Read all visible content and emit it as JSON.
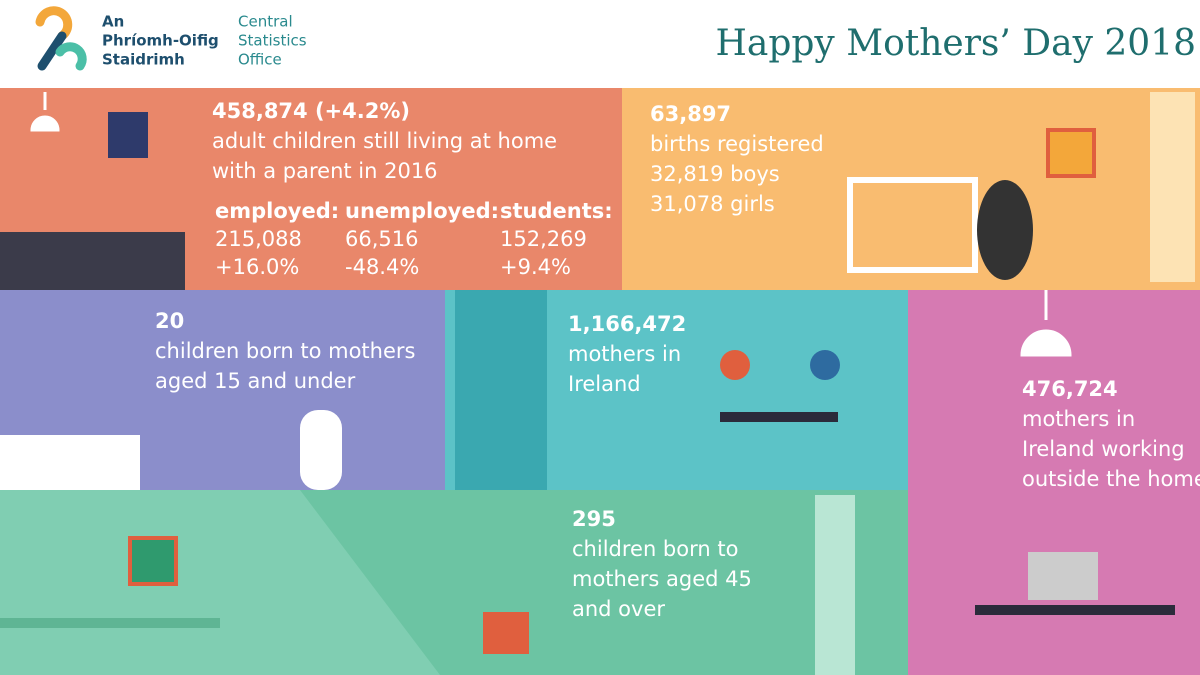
{
  "logo": {
    "irish": [
      "An",
      "Phríomh-Oifig",
      "Staidrimh"
    ],
    "english": [
      "Central",
      "Statistics",
      "Office"
    ]
  },
  "title": "Happy Mothers’ Day 2018",
  "panels": [
    {
      "lines": [
        "458,874  (+4.2%)",
        "adult children still living at home",
        "with a parent in 2016"
      ],
      "columns": [
        {
          "label": "employed:",
          "value": "215,088",
          "change": "+16.0%"
        },
        {
          "label": "unemployed:",
          "value": "66,516",
          "change": "-48.4%"
        },
        {
          "label": "students:",
          "value": "152,269",
          "change": "+9.4%"
        }
      ]
    },
    {
      "lines": [
        "63,897",
        "births registered",
        "32,819 boys",
        "31,078 girls"
      ]
    },
    {
      "lines": [
        "20",
        "children born to mothers",
        "aged 15 and under"
      ]
    },
    {
      "lines": [
        "1,166,472",
        "mothers in",
        "Ireland"
      ]
    },
    {
      "lines": [
        "476,724",
        "mothers in",
        "Ireland working",
        "outside the home"
      ]
    },
    {
      "lines": [
        "295",
        "children born to",
        "mothers aged 45",
        "and over"
      ]
    }
  ]
}
